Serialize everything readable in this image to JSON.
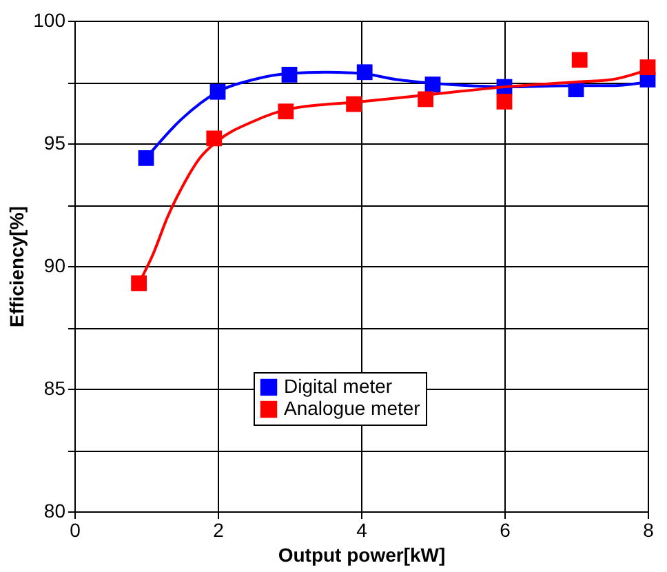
{
  "chart_data": {
    "type": "scatter",
    "xlabel": "Output power[kW]",
    "ylabel": "Efficiency[%]",
    "xlim": [
      0,
      8
    ],
    "xticks": [
      0,
      2,
      4,
      6,
      8
    ],
    "ylim": [
      80,
      100
    ],
    "yticks": [
      80,
      {
        "value": 82.5,
        "label": null
      },
      85,
      {
        "value": 87.5,
        "label": null
      },
      90,
      {
        "value": 92.5,
        "label": null
      },
      95,
      {
        "value": 97.5,
        "label": null
      },
      100
    ],
    "grid": true,
    "legend": "bottom right",
    "marker": "square",
    "series": [
      {
        "name": "Digital meter",
        "color": "#0000ff",
        "x": [
          1.0,
          2.0,
          3.0,
          4.05,
          5.0,
          6.0,
          7.0,
          8.0
        ],
        "values": [
          94.4,
          97.1,
          97.8,
          97.9,
          97.4,
          97.3,
          97.2,
          97.6
        ]
      },
      {
        "name": "Analogue meter",
        "color": "#ff0000",
        "x": [
          0.9,
          1.95,
          2.95,
          3.9,
          4.9,
          6.0,
          7.05,
          8.0
        ],
        "values": [
          89.3,
          95.2,
          96.3,
          96.6,
          96.8,
          96.7,
          98.4,
          98.1
        ]
      },
      {
        "type": "line",
        "color": "#0000ff",
        "line_style": "solid",
        "marker": "none",
        "x": [
          1.0,
          1.5,
          2.0,
          2.5,
          3.0,
          3.5,
          4.0,
          4.5,
          5.0,
          5.5,
          6.0,
          7.0,
          7.5,
          8.0
        ],
        "values": [
          94.4,
          96.0,
          97.1,
          97.6,
          97.85,
          97.9,
          97.85,
          97.6,
          97.45,
          97.35,
          97.3,
          97.35,
          97.35,
          97.5
        ]
      },
      {
        "type": "line",
        "color": "#ff0000",
        "line_style": "solid",
        "marker": "none",
        "x": [
          0.9,
          1.1,
          1.3,
          1.5,
          1.75,
          2.0,
          2.5,
          3.0,
          4.0,
          5.0,
          6.0,
          7.0,
          7.5,
          8.0
        ],
        "values": [
          89.3,
          90.5,
          92.0,
          93.2,
          94.4,
          95.1,
          95.9,
          96.4,
          96.7,
          97.0,
          97.3,
          97.5,
          97.6,
          98.0
        ]
      }
    ]
  }
}
